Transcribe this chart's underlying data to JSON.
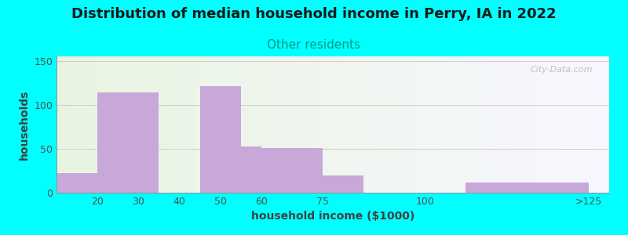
{
  "title": "Distribution of median household income in Perry, IA in 2022",
  "subtitle": "Other residents",
  "xlabel": "household income ($1000)",
  "ylabel": "households",
  "background_color": "#00FFFF",
  "bar_color": "#c8a8d8",
  "watermark": "City-Data.com",
  "bar_lefts": [
    10,
    20,
    45,
    55,
    60,
    75,
    110
  ],
  "bar_rights": [
    20,
    35,
    55,
    60,
    75,
    85,
    140
  ],
  "values": [
    22,
    114,
    121,
    53,
    51,
    20,
    12
  ],
  "xtick_positions": [
    20,
    30,
    40,
    50,
    60,
    75,
    100,
    140
  ],
  "xtick_labels": [
    "20",
    "30",
    "40",
    "50",
    "60",
    "75",
    "100",
    ">125"
  ],
  "ylim": [
    0,
    155
  ],
  "yticks": [
    0,
    50,
    100,
    150
  ],
  "xlim": [
    10,
    145
  ],
  "title_fontsize": 13,
  "subtitle_fontsize": 11,
  "axis_label_fontsize": 10,
  "tick_fontsize": 9
}
